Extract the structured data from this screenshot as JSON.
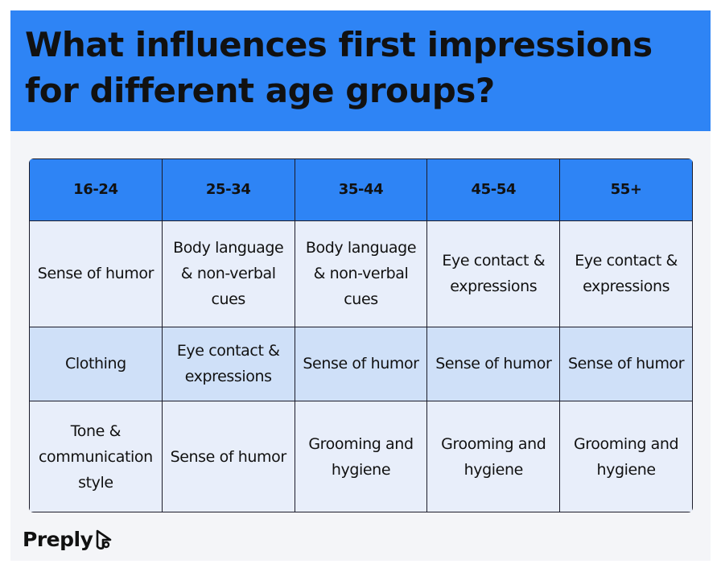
{
  "header": {
    "title": "What influences first impressions for different age groups?"
  },
  "table": {
    "headers": [
      "16-24",
      "25-34",
      "35-44",
      "45-54",
      "55+"
    ],
    "rows": [
      [
        "Sense of humor",
        "Body language & non-verbal cues",
        "Body language & non-verbal cues",
        "Eye contact & expressions",
        "Eye contact & expressions"
      ],
      [
        "Clothing",
        "Eye contact & expressions",
        "Sense of humor",
        "Sense of humor",
        "Sense of humor"
      ],
      [
        "Tone & communication style",
        "Sense of humor",
        "Grooming and hygiene",
        "Grooming and hygiene",
        "Grooming and hygiene"
      ]
    ]
  },
  "footer": {
    "logo": "Preply"
  }
}
